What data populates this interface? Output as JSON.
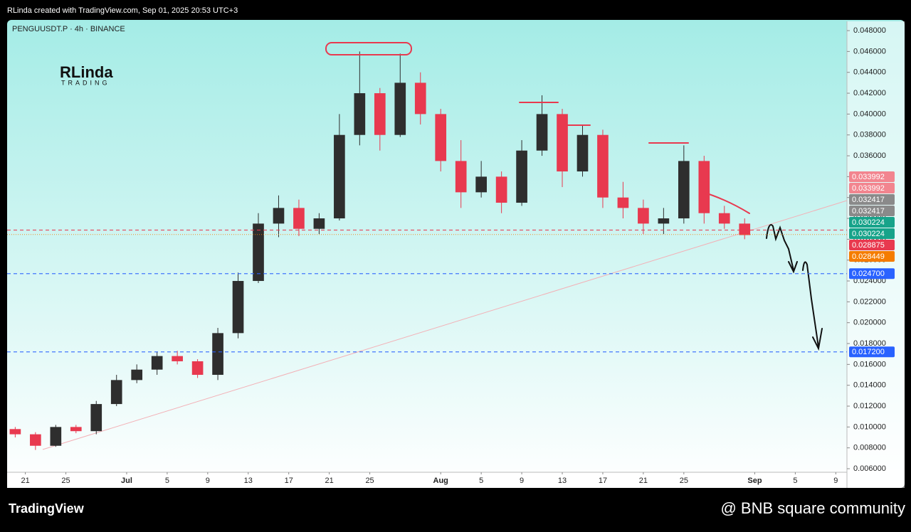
{
  "header": {
    "text": "RLinda created with TradingView.com, Sep 01, 2025 20:53 UTC+3"
  },
  "logo": {
    "name": "RLinda",
    "sub": "TRADING"
  },
  "footer": {
    "brand": "TradingView",
    "credit": "@ BNB square community"
  },
  "chart_data": {
    "type": "candlestick",
    "title": "PENGUUSDT.P · 4h · BINANCE",
    "x": [
      1,
      3,
      5,
      7,
      9,
      11,
      13,
      15,
      17,
      19,
      21,
      23,
      25,
      27,
      29,
      31,
      33,
      35,
      37,
      39,
      41,
      43,
      45,
      47,
      49,
      51,
      53,
      55,
      57,
      59,
      61,
      63,
      65,
      67,
      69,
      71,
      73
    ],
    "open": [
      0.0098,
      0.0093,
      0.0082,
      0.01,
      0.0096,
      0.0122,
      0.0145,
      0.0155,
      0.0168,
      0.0163,
      0.015,
      0.019,
      0.024,
      0.0295,
      0.031,
      0.029,
      0.03,
      0.038,
      0.042,
      0.038,
      0.043,
      0.04,
      0.0355,
      0.0325,
      0.034,
      0.0315,
      0.0365,
      0.04,
      0.0345,
      0.038,
      0.032,
      0.031,
      0.0295,
      0.03,
      0.0355,
      0.0305,
      0.0295
    ],
    "high": [
      0.01,
      0.0095,
      0.0102,
      0.0102,
      0.0125,
      0.015,
      0.016,
      0.0172,
      0.0173,
      0.0165,
      0.0195,
      0.0248,
      0.0305,
      0.0322,
      0.0318,
      0.0305,
      0.04,
      0.046,
      0.0425,
      0.0458,
      0.044,
      0.0405,
      0.0375,
      0.0355,
      0.0345,
      0.0375,
      0.0418,
      0.0405,
      0.039,
      0.0385,
      0.0335,
      0.0318,
      0.031,
      0.037,
      0.036,
      0.0312,
      0.03
    ],
    "low": [
      0.009,
      0.0078,
      0.0081,
      0.0094,
      0.0093,
      0.012,
      0.0142,
      0.015,
      0.016,
      0.0147,
      0.0145,
      0.0185,
      0.0238,
      0.0282,
      0.0283,
      0.0285,
      0.0298,
      0.037,
      0.0365,
      0.0378,
      0.039,
      0.0345,
      0.031,
      0.032,
      0.0305,
      0.0312,
      0.036,
      0.033,
      0.034,
      0.031,
      0.03,
      0.0285,
      0.0285,
      0.0295,
      0.0295,
      0.029,
      0.028
    ],
    "close": [
      0.0093,
      0.0082,
      0.01,
      0.0096,
      0.0122,
      0.0145,
      0.0155,
      0.0168,
      0.0163,
      0.015,
      0.019,
      0.024,
      0.0295,
      0.031,
      0.029,
      0.03,
      0.038,
      0.042,
      0.038,
      0.043,
      0.04,
      0.0355,
      0.0325,
      0.034,
      0.0315,
      0.0365,
      0.04,
      0.0345,
      0.038,
      0.032,
      0.031,
      0.0295,
      0.03,
      0.0355,
      0.0305,
      0.0295,
      0.0284
    ],
    "up_color": "#2e2e2e",
    "down_color": "#e8394f",
    "xlim": [
      0.2,
      83.1
    ],
    "xticks": [
      {
        "value": 2,
        "label": "21"
      },
      {
        "value": 6,
        "label": "25"
      },
      {
        "value": 12,
        "label": "Jul"
      },
      {
        "value": 16,
        "label": "5"
      },
      {
        "value": 20,
        "label": "9"
      },
      {
        "value": 24,
        "label": "13"
      },
      {
        "value": 28,
        "label": "17"
      },
      {
        "value": 32,
        "label": "21"
      },
      {
        "value": 36,
        "label": "25"
      },
      {
        "value": 43,
        "label": "Aug"
      },
      {
        "value": 47,
        "label": "5"
      },
      {
        "value": 51,
        "label": "9"
      },
      {
        "value": 55,
        "label": "13"
      },
      {
        "value": 59,
        "label": "17"
      },
      {
        "value": 63,
        "label": "21"
      },
      {
        "value": 67,
        "label": "25"
      },
      {
        "value": 74,
        "label": "Sep"
      },
      {
        "value": 78,
        "label": "5"
      },
      {
        "value": 82,
        "label": "9"
      }
    ],
    "ylim": [
      0.00566,
      0.04889
    ],
    "yticks": [
      {
        "value": 0.006,
        "label": "0.006000"
      },
      {
        "value": 0.008,
        "label": "0.008000"
      },
      {
        "value": 0.01,
        "label": "0.010000"
      },
      {
        "value": 0.012,
        "label": "0.012000"
      },
      {
        "value": 0.014,
        "label": "0.014000"
      },
      {
        "value": 0.016,
        "label": "0.016000"
      },
      {
        "value": 0.018,
        "label": "0.018000"
      },
      {
        "value": 0.02,
        "label": "0.020000"
      },
      {
        "value": 0.022,
        "label": "0.022000"
      },
      {
        "value": 0.024,
        "label": "0.024000"
      },
      {
        "value": 0.026,
        "label": "0.026000"
      },
      {
        "value": 0.028,
        "label": "0.028000"
      },
      {
        "value": 0.03,
        "label": "0.030000"
      },
      {
        "value": 0.032,
        "label": "0.032000"
      },
      {
        "value": 0.034,
        "label": "0.034000"
      },
      {
        "value": 0.036,
        "label": "0.036000"
      },
      {
        "value": 0.038,
        "label": "0.038000"
      },
      {
        "value": 0.04,
        "label": "0.040000"
      },
      {
        "value": 0.042,
        "label": "0.042000"
      },
      {
        "value": 0.044,
        "label": "0.044000"
      },
      {
        "value": 0.046,
        "label": "0.046000"
      },
      {
        "value": 0.048,
        "label": "0.048000"
      }
    ],
    "price_labels": [
      {
        "value": 0.033992,
        "label": "0.033992",
        "color": "#f2858f"
      },
      {
        "value": 0.033992,
        "label": "0.033992",
        "color": "#f2858f"
      },
      {
        "value": 0.032417,
        "label": "0.032417",
        "color": "#8a8a8a"
      },
      {
        "value": 0.032417,
        "label": "0.032417",
        "color": "#8a8a8a"
      },
      {
        "value": 0.030224,
        "label": "0.030224",
        "color": "#17a38a"
      },
      {
        "value": 0.030224,
        "label": "0.030224",
        "color": "#17a38a"
      },
      {
        "value": 0.028875,
        "label": "0.028875",
        "color": "#e8394f",
        "line": "dashed"
      },
      {
        "value": 0.028449,
        "label": "0.028449",
        "color": "#f57c00",
        "line": "dotted"
      },
      {
        "value": 0.0247,
        "label": "0.024700",
        "color": "#2962ff",
        "line": "dashed"
      },
      {
        "value": 0.0172,
        "label": "0.017200",
        "color": "#2962ff",
        "line": "dashed"
      }
    ]
  }
}
